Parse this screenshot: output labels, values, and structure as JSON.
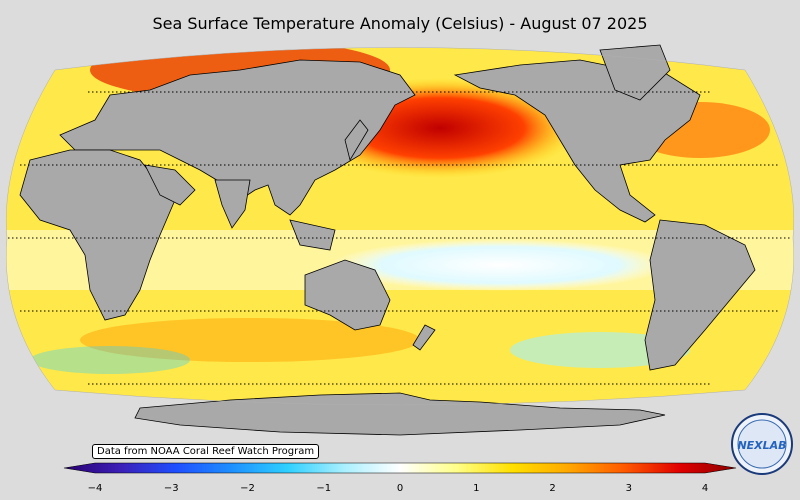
{
  "title": "Sea Surface Temperature Anomaly (Celsius) - August 07 2025",
  "source_note": "Data from NOAA Coral Reef Watch Program",
  "logo_text": "NEXLAB",
  "colorbar": {
    "min": -4,
    "max": 4,
    "tick_labels": [
      "−4",
      "−3",
      "−2",
      "−1",
      "0",
      "1",
      "2",
      "3",
      "4"
    ],
    "colors": [
      "#2a0070",
      "#3b1fb6",
      "#1f4fff",
      "#1e90ff",
      "#2fd0ff",
      "#aaf0ff",
      "#ffffff",
      "#ffff8a",
      "#ffe000",
      "#ffa800",
      "#ff5a00",
      "#e00000",
      "#8a0000"
    ]
  },
  "map": {
    "projection": "Robinson (Pacific-centered)",
    "ocean_base_color": "#ffe84a",
    "land_color": "#a9a9a9",
    "graticule": "dotted",
    "latitude_lines_deg": [
      -60,
      -30,
      0,
      30,
      60
    ]
  }
}
